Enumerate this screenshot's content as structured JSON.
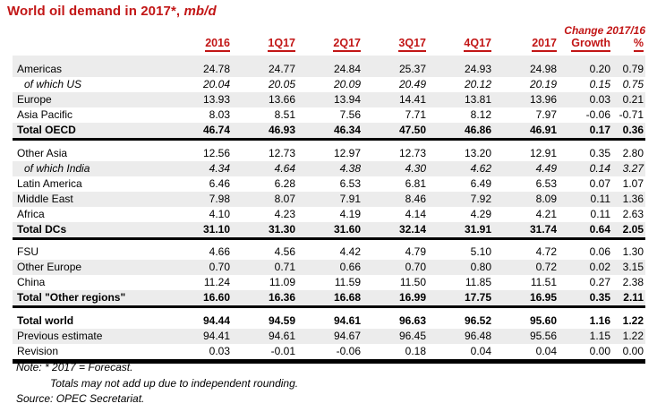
{
  "colors": {
    "accent_red": "#C21616",
    "row_shade": "#ECECEC",
    "rule_black": "#000000"
  },
  "title": {
    "text": "World oil demand in 2017*,",
    "unit": "mb/d"
  },
  "table": {
    "change_header": "Change 2017/16",
    "columns": [
      "2016",
      "1Q17",
      "2Q17",
      "3Q17",
      "4Q17",
      "2017",
      "Growth",
      "%"
    ],
    "sections": [
      {
        "spacer_shaded": true,
        "rows": [
          {
            "label": "Americas",
            "kind": "data",
            "shaded": true,
            "values": [
              "24.78",
              "24.77",
              "24.84",
              "25.37",
              "24.93",
              "24.98",
              "0.20",
              "0.79"
            ]
          },
          {
            "label": "of which US",
            "kind": "sub",
            "shaded": false,
            "values": [
              "20.04",
              "20.05",
              "20.09",
              "20.49",
              "20.12",
              "20.19",
              "0.15",
              "0.75"
            ]
          },
          {
            "label": "Europe",
            "kind": "data",
            "shaded": true,
            "values": [
              "13.93",
              "13.66",
              "13.94",
              "14.41",
              "13.81",
              "13.96",
              "0.03",
              "0.21"
            ]
          },
          {
            "label": "Asia Pacific",
            "kind": "data",
            "shaded": false,
            "values": [
              "8.03",
              "8.51",
              "7.56",
              "7.71",
              "8.12",
              "7.97",
              "-0.06",
              "-0.71"
            ]
          },
          {
            "label": "Total OECD",
            "kind": "total",
            "shaded": true,
            "rule_below": "normal",
            "values": [
              "46.74",
              "46.93",
              "46.34",
              "47.50",
              "46.86",
              "46.91",
              "0.17",
              "0.36"
            ]
          }
        ]
      },
      {
        "spacer_shaded": false,
        "rows": [
          {
            "label": "Other Asia",
            "kind": "data",
            "shaded": false,
            "values": [
              "12.56",
              "12.73",
              "12.97",
              "12.73",
              "13.20",
              "12.91",
              "0.35",
              "2.80"
            ]
          },
          {
            "label": "of which India",
            "kind": "sub",
            "shaded": true,
            "values": [
              "4.34",
              "4.64",
              "4.38",
              "4.30",
              "4.62",
              "4.49",
              "0.14",
              "3.27"
            ]
          },
          {
            "label": "Latin America",
            "kind": "data",
            "shaded": false,
            "values": [
              "6.46",
              "6.28",
              "6.53",
              "6.81",
              "6.49",
              "6.53",
              "0.07",
              "1.07"
            ]
          },
          {
            "label": "Middle East",
            "kind": "data",
            "shaded": true,
            "values": [
              "7.98",
              "8.07",
              "7.91",
              "8.46",
              "7.92",
              "8.09",
              "0.11",
              "1.36"
            ]
          },
          {
            "label": "Africa",
            "kind": "data",
            "shaded": false,
            "values": [
              "4.10",
              "4.23",
              "4.19",
              "4.14",
              "4.29",
              "4.21",
              "0.11",
              "2.63"
            ]
          },
          {
            "label": "Total DCs",
            "kind": "total",
            "shaded": true,
            "rule_below": "normal",
            "values": [
              "31.10",
              "31.30",
              "31.60",
              "32.14",
              "31.91",
              "31.74",
              "0.64",
              "2.05"
            ]
          }
        ]
      },
      {
        "spacer_shaded": false,
        "rows": [
          {
            "label": "FSU",
            "kind": "data",
            "shaded": false,
            "values": [
              "4.66",
              "4.56",
              "4.42",
              "4.79",
              "5.10",
              "4.72",
              "0.06",
              "1.30"
            ]
          },
          {
            "label": "Other Europe",
            "kind": "data",
            "shaded": true,
            "values": [
              "0.70",
              "0.71",
              "0.66",
              "0.70",
              "0.80",
              "0.72",
              "0.02",
              "3.15"
            ]
          },
          {
            "label": "China",
            "kind": "data",
            "shaded": false,
            "values": [
              "11.24",
              "11.09",
              "11.59",
              "11.50",
              "11.85",
              "11.51",
              "0.27",
              "2.38"
            ]
          },
          {
            "label": "Total \"Other regions\"",
            "kind": "total",
            "shaded": true,
            "rule_below": "normal",
            "values": [
              "16.60",
              "16.36",
              "16.68",
              "16.99",
              "17.75",
              "16.95",
              "0.35",
              "2.11"
            ]
          }
        ]
      },
      {
        "spacer_shaded": false,
        "rows": [
          {
            "label": "Total world",
            "kind": "total",
            "shaded": false,
            "values": [
              "94.44",
              "94.59",
              "94.61",
              "96.63",
              "96.52",
              "95.60",
              "1.16",
              "1.22"
            ]
          },
          {
            "label": "Previous estimate",
            "kind": "data",
            "shaded": true,
            "values": [
              "94.41",
              "94.61",
              "94.67",
              "96.45",
              "96.48",
              "95.56",
              "1.15",
              "1.22"
            ]
          },
          {
            "label": "Revision",
            "kind": "data",
            "shaded": false,
            "rule_below": "heavy",
            "values": [
              "0.03",
              "-0.01",
              "-0.06",
              "0.18",
              "0.04",
              "0.04",
              "0.00",
              "0.00"
            ]
          }
        ]
      }
    ]
  },
  "notes": {
    "line1": "Note: * 2017 = Forecast.",
    "line2": "Totals may not add up due to independent rounding.",
    "line3": "Source: OPEC Secretariat."
  }
}
